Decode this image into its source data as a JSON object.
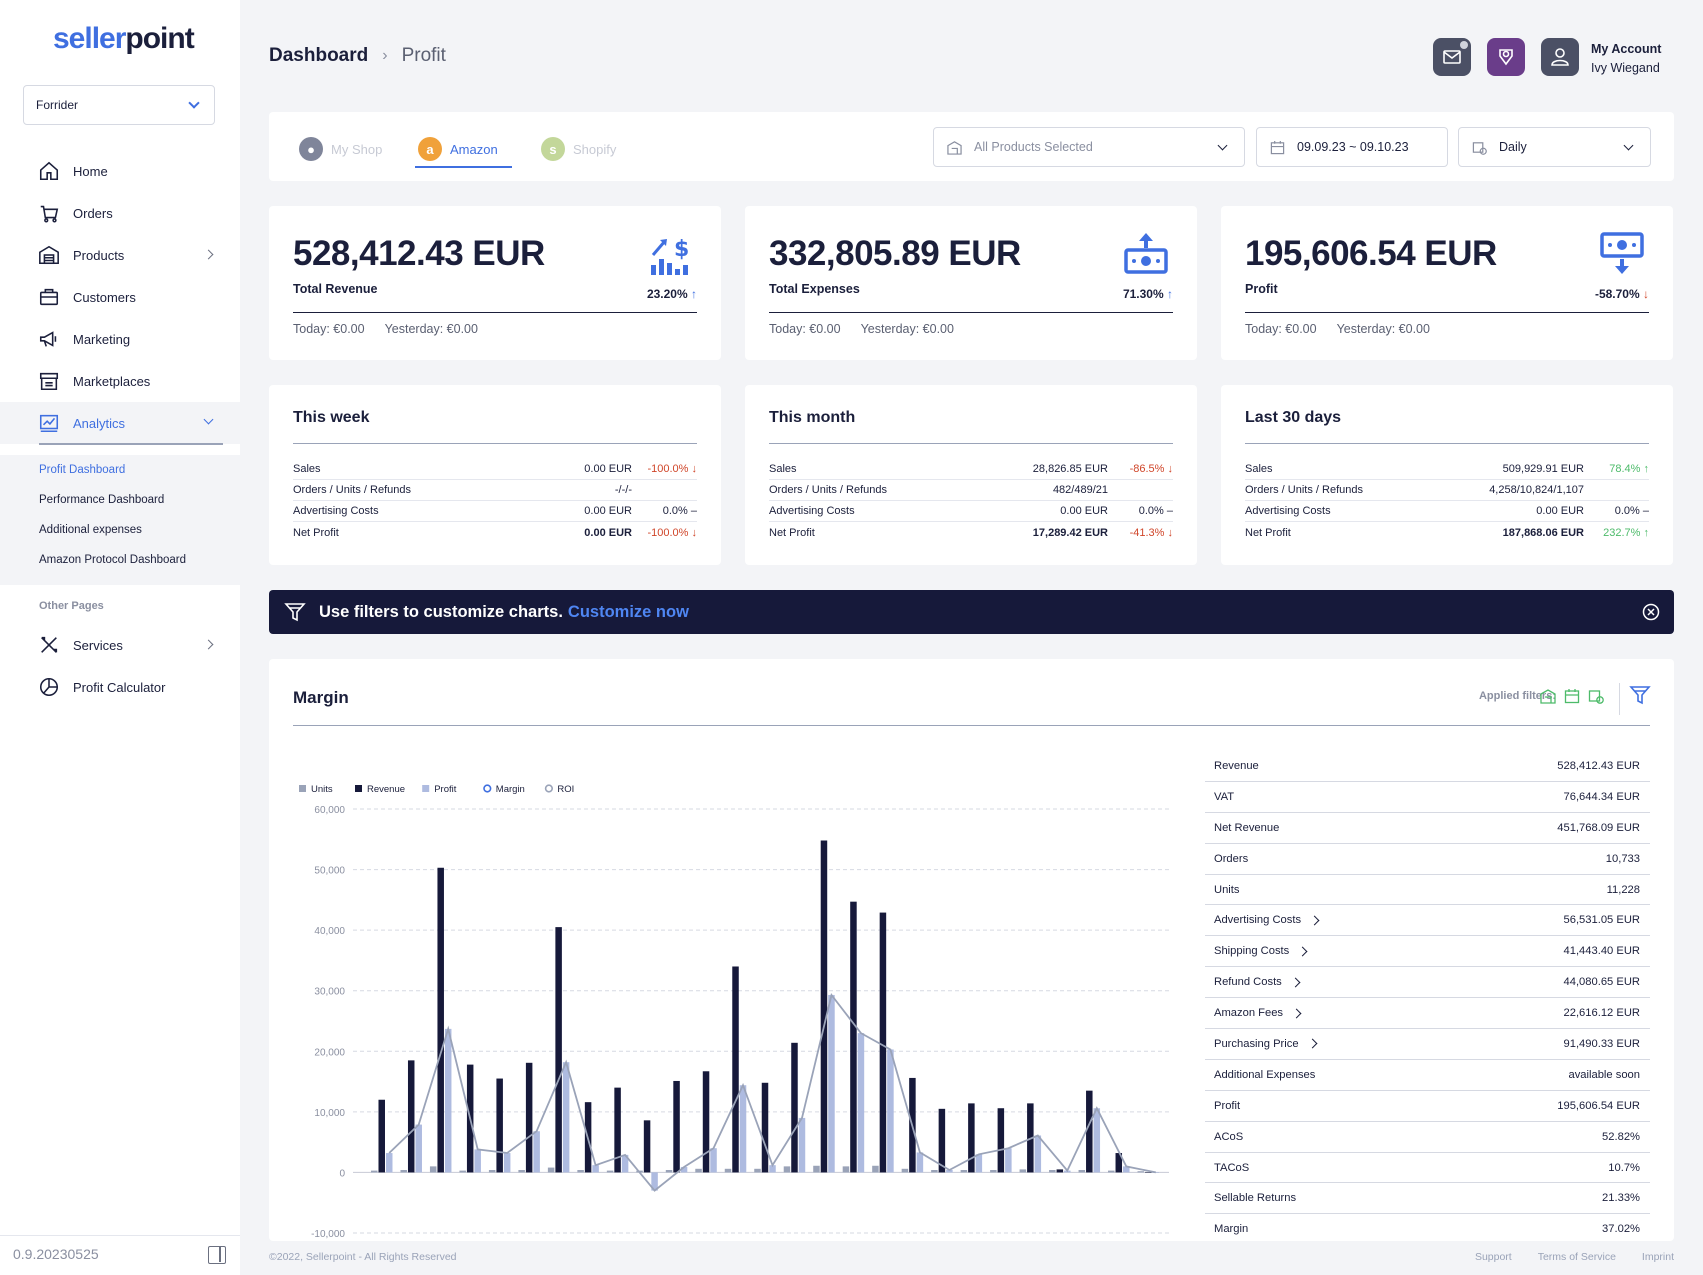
{
  "logo": {
    "part1": "seller",
    "part2": "point"
  },
  "shop_select": {
    "value": "Forrider"
  },
  "nav": [
    {
      "label": "Home",
      "icon": "home-icon"
    },
    {
      "label": "Orders",
      "icon": "basket-icon"
    },
    {
      "label": "Products",
      "icon": "warehouse-icon"
    },
    {
      "label": "Customers",
      "icon": "briefcase-icon"
    },
    {
      "label": "Marketing",
      "icon": "megaphone-icon"
    },
    {
      "label": "Marketplaces",
      "icon": "store-icon"
    },
    {
      "label": "Analytics",
      "icon": "analytics-icon"
    }
  ],
  "subnav": [
    "Profit Dashboard",
    "Performance Dashboard",
    "Additional expenses",
    "Amazon Protocol Dashboard"
  ],
  "other_pages": {
    "title": "Other Pages",
    "items": [
      {
        "label": "Services",
        "icon": "tools-icon"
      },
      {
        "label": "Profit Calculator",
        "icon": "chart-pie-icon"
      }
    ]
  },
  "version": "0.9.20230525",
  "breadcrumb": {
    "first": "Dashboard",
    "current": "Profit"
  },
  "account": {
    "label": "My Account",
    "name": "Ivy Wiegand"
  },
  "tabs": [
    "My Shop",
    "Amazon",
    "Shopify"
  ],
  "filters": {
    "products": "All Products Selected",
    "date": "09.09.23 ~ 09.10.23",
    "period": "Daily"
  },
  "kpis": [
    {
      "value": "528,412.43 EUR",
      "label": "Total Revenue",
      "pct": "23.20%",
      "dir": "up",
      "today": "Today: €0.00",
      "yesterday": "Yesterday: €0.00"
    },
    {
      "value": "332,805.89 EUR",
      "label": "Total Expenses",
      "pct": "71.30%",
      "dir": "up",
      "today": "Today: €0.00",
      "yesterday": "Yesterday: €0.00"
    },
    {
      "value": "195,606.54 EUR",
      "label": "Profit",
      "pct": "-58.70%",
      "dir": "down",
      "today": "Today: €0.00",
      "yesterday": "Yesterday: €0.00"
    }
  ],
  "periods": [
    {
      "title": "This week",
      "rows": [
        {
          "k": "Sales",
          "v": "0.00 EUR",
          "d": "-100.0%",
          "t": "red",
          "a": "↓"
        },
        {
          "k": "Orders / Units / Refunds",
          "v": "-/-/-",
          "d": "",
          "t": "neutral",
          "a": ""
        },
        {
          "k": "Advertising Costs",
          "v": "0.00 EUR",
          "d": "0.0%",
          "t": "neutral",
          "a": "–"
        },
        {
          "k": "Net Profit",
          "v": "0.00 EUR",
          "d": "-100.0%",
          "t": "red",
          "a": "↓"
        }
      ]
    },
    {
      "title": "This month",
      "rows": [
        {
          "k": "Sales",
          "v": "28,826.85 EUR",
          "d": "-86.5%",
          "t": "red",
          "a": "↓"
        },
        {
          "k": "Orders / Units / Refunds",
          "v": "482/489/21",
          "d": "",
          "t": "neutral",
          "a": ""
        },
        {
          "k": "Advertising Costs",
          "v": "0.00 EUR",
          "d": "0.0%",
          "t": "neutral",
          "a": "–"
        },
        {
          "k": "Net Profit",
          "v": "17,289.42 EUR",
          "d": "-41.3%",
          "t": "red",
          "a": "↓"
        }
      ]
    },
    {
      "title": "Last 30 days",
      "rows": [
        {
          "k": "Sales",
          "v": "509,929.91 EUR",
          "d": "78.4%",
          "t": "green",
          "a": "↑"
        },
        {
          "k": "Orders / Units / Refunds",
          "v": "4,258/10,824/1,107",
          "d": "",
          "t": "neutral",
          "a": ""
        },
        {
          "k": "Advertising Costs",
          "v": "0.00 EUR",
          "d": "0.0%",
          "t": "neutral",
          "a": "–"
        },
        {
          "k": "Net Profit",
          "v": "187,868.06 EUR",
          "d": "232.7%",
          "t": "green",
          "a": "↑"
        }
      ]
    }
  ],
  "banner": {
    "text": "Use filters to customize charts.",
    "link": "Customize now"
  },
  "margin": {
    "title": "Margin",
    "applied_filters": "Applied filters:"
  },
  "stats": [
    {
      "k": "Revenue",
      "v": "528,412.43 EUR",
      "chev": false
    },
    {
      "k": "VAT",
      "v": "76,644.34 EUR",
      "chev": false
    },
    {
      "k": "Net Revenue",
      "v": "451,768.09 EUR",
      "chev": false
    },
    {
      "k": "Orders",
      "v": "10,733",
      "chev": false
    },
    {
      "k": "Units",
      "v": "11,228",
      "chev": false
    },
    {
      "k": "Advertising Costs",
      "v": "56,531.05 EUR",
      "chev": true
    },
    {
      "k": "Shipping Costs",
      "v": "41,443.40 EUR",
      "chev": true
    },
    {
      "k": "Refund Costs",
      "v": "44,080.65 EUR",
      "chev": true
    },
    {
      "k": "Amazon Fees",
      "v": "22,616.12 EUR",
      "chev": true
    },
    {
      "k": "Purchasing Price",
      "v": "91,490.33 EUR",
      "chev": true
    },
    {
      "k": "Additional Expenses",
      "v": "available soon",
      "chev": false
    },
    {
      "k": "Profit",
      "v": "195,606.54 EUR",
      "chev": false
    },
    {
      "k": "ACoS",
      "v": "52.82%",
      "chev": false
    },
    {
      "k": "TACoS",
      "v": "10.7%",
      "chev": false
    },
    {
      "k": "Sellable Returns",
      "v": "21.33%",
      "chev": false
    },
    {
      "k": "Margin",
      "v": "37.02%",
      "chev": false
    }
  ],
  "footer": {
    "copyright": "©2022, Sellerpoint - All Rights Reserved",
    "links": [
      "Support",
      "Terms of Service",
      "Imprint"
    ]
  },
  "colors": {
    "accent": "#3f6fe0",
    "dark": "#16193a",
    "units": "#9aa3b8",
    "revenue": "#16193a",
    "profit": "#aebbe0",
    "margin": "#3f6fe0",
    "roi": "#9aa3b8"
  },
  "chart_data": {
    "type": "bar",
    "legend": [
      "Units",
      "Revenue",
      "Profit",
      "Margin",
      "ROI"
    ],
    "y_ticks": [
      "60,000",
      "50,000",
      "40,000",
      "30,000",
      "20,000",
      "10,000",
      "0",
      "-10,000"
    ],
    "ylim": [
      -10000,
      60000
    ],
    "series": [
      {
        "name": "Units",
        "values": [
          300,
          400,
          1000,
          300,
          400,
          400,
          800,
          400,
          300,
          300,
          400,
          600,
          600,
          600,
          1000,
          1100,
          1000,
          1100,
          600,
          400,
          400,
          400,
          500,
          400,
          400,
          300,
          200
        ]
      },
      {
        "name": "Revenue",
        "values": [
          12000,
          18500,
          50300,
          17800,
          15500,
          18100,
          40500,
          11600,
          14000,
          8600,
          15100,
          16700,
          34000,
          14800,
          21400,
          54800,
          44700,
          42900,
          15600,
          10500,
          11400,
          10600,
          11400,
          500,
          13500,
          3200,
          0
        ]
      },
      {
        "name": "Profit",
        "values": [
          3200,
          7900,
          23700,
          3800,
          3200,
          6800,
          18200,
          1200,
          2900,
          -3000,
          900,
          4000,
          14400,
          1200,
          9000,
          29300,
          23000,
          20300,
          3300,
          400,
          3000,
          4000,
          6100,
          300,
          10600,
          1000,
          0
        ]
      },
      {
        "name": "Margin",
        "values": [
          3200,
          7900,
          23700,
          3800,
          3200,
          6800,
          18200,
          1200,
          2900,
          -3000,
          900,
          4000,
          14400,
          1200,
          9000,
          29300,
          23000,
          20300,
          3300,
          400,
          3000,
          4000,
          6100,
          300,
          10600,
          1000,
          0
        ]
      }
    ]
  }
}
